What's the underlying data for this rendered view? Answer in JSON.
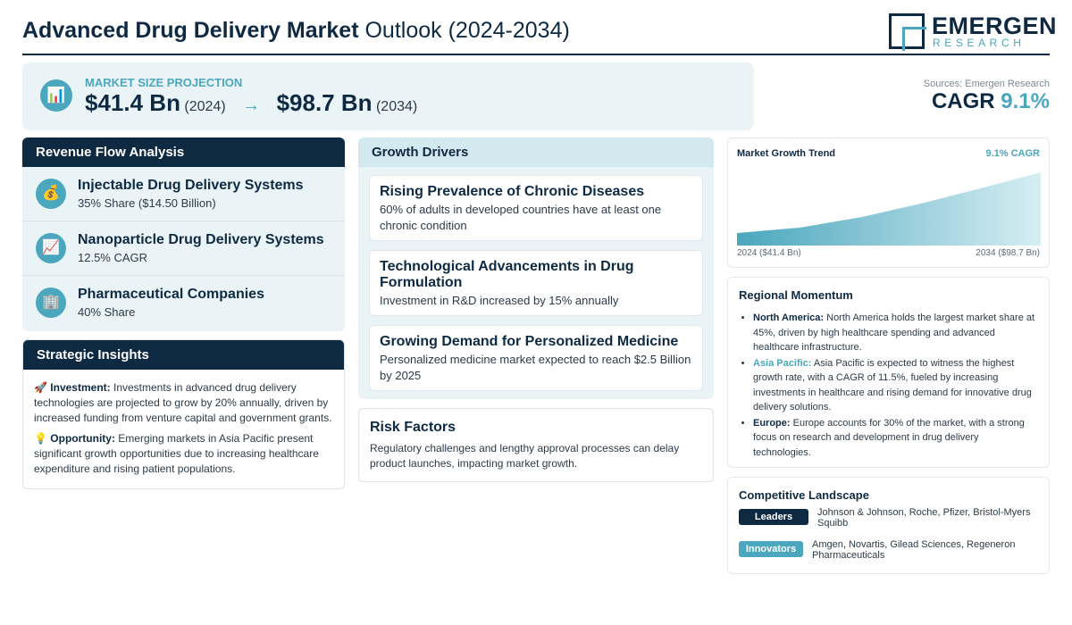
{
  "header": {
    "title_bold": "Advanced Drug Delivery Market",
    "title_rest": "Outlook (2024-2034)",
    "logo_brand": "EMERGEN",
    "logo_sub": "RESEARCH"
  },
  "projection": {
    "label": "MARKET SIZE PROJECTION",
    "icon": "bar-chart-icon",
    "start_value": "$41.4 Bn",
    "start_year": "(2024)",
    "arrow": "→",
    "end_value": "$98.7 Bn",
    "end_year": "(2034)"
  },
  "sources": "Sources: Emergen Research",
  "cagr": {
    "label": "CAGR",
    "value": "9.1%"
  },
  "revenue": {
    "title": "Revenue Flow Analysis",
    "items": [
      {
        "icon": "money-bag-icon",
        "glyph": "💰",
        "title": "Injectable Drug Delivery Systems",
        "sub": "35% Share ($14.50 Billion)"
      },
      {
        "icon": "trend-up-icon",
        "glyph": "📈",
        "title": "Nanoparticle Drug Delivery Systems",
        "sub": "12.5% CAGR"
      },
      {
        "icon": "building-icon",
        "glyph": "🏢",
        "title": "Pharmaceutical Companies",
        "sub": "40% Share"
      }
    ]
  },
  "strategic": {
    "title": "Strategic Insights",
    "items": [
      {
        "glyph": "🚀",
        "label": "Investment:",
        "text": "Investments in advanced drug delivery technologies are projected to grow by 20% annually, driven by increased funding from venture capital and government grants."
      },
      {
        "glyph": "💡",
        "label": "Opportunity:",
        "text": "Emerging markets in Asia Pacific present significant growth opportunities due to increasing healthcare expenditure and rising patient populations."
      }
    ]
  },
  "drivers": {
    "title": "Growth Drivers",
    "items": [
      {
        "title": "Rising Prevalence of Chronic Diseases",
        "text": "60% of adults in developed countries have at least one chronic condition"
      },
      {
        "title": "Technological Advancements in Drug Formulation",
        "text": "Investment in R&D increased by 15% annually"
      },
      {
        "title": "Growing Demand for Personalized Medicine",
        "text": "Personalized medicine market expected to reach $2.5 Billion by 2025"
      }
    ]
  },
  "risk": {
    "title": "Risk Factors",
    "text": "Regulatory challenges and lengthy approval processes can delay product launches, impacting market growth."
  },
  "trend": {
    "title": "Market Growth Trend",
    "cagr_label": "9.1% CAGR",
    "start_label": "2024 ($41.4 Bn)",
    "end_label": "2034 ($98.7 Bn)",
    "colors": {
      "fill_start": "#4aa7bd",
      "fill_end": "#d6eef3"
    }
  },
  "regional": {
    "title": "Regional Momentum",
    "items": [
      {
        "label": "North America:",
        "text": "North America holds the largest market share at 45%, driven by high healthcare spending and advanced healthcare infrastructure."
      },
      {
        "label": "Asia Pacific:",
        "text": "Asia Pacific is expected to witness the highest growth rate, with a CAGR of 11.5%, fueled by increasing investments in healthcare and rising demand for innovative drug delivery solutions."
      },
      {
        "label": "Europe:",
        "text": "Europe accounts for 30% of the market, with a strong focus on research and development in drug delivery technologies."
      }
    ]
  },
  "competitive": {
    "title": "Competitive Landscape",
    "leaders_label": "Leaders",
    "leaders_text": "Johnson & Johnson, Roche, Pfizer, Bristol-Myers Squibb",
    "innovators_label": "Innovators",
    "innovators_text": "Amgen, Novartis, Gilead Sciences, Regeneron Pharmaceuticals"
  },
  "colors": {
    "navy": "#0e2a43",
    "teal": "#4aa7bd",
    "light_panel": "#eaf4f7"
  }
}
